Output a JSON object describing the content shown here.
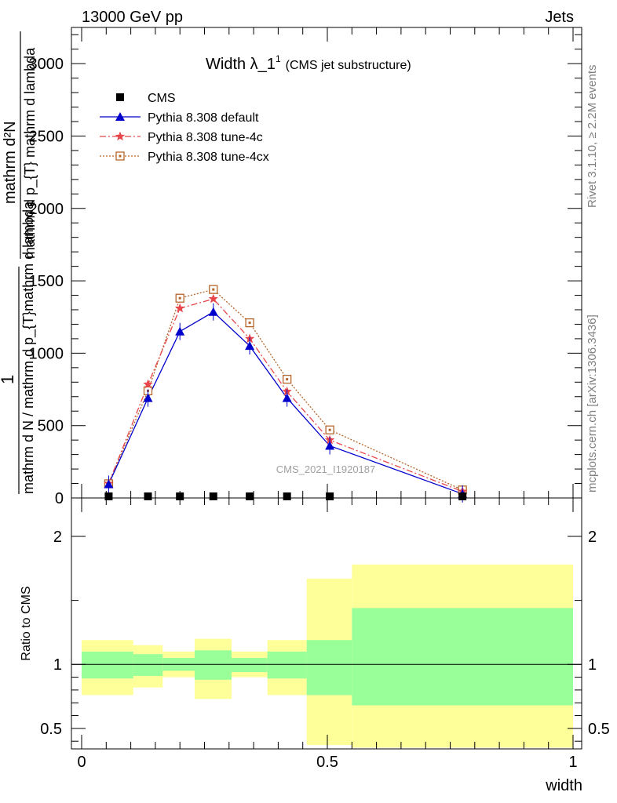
{
  "header": {
    "left": "13000 GeV pp",
    "right": "Jets"
  },
  "title": {
    "main": "Width λ_1",
    "sup": "1",
    "sub": "(CMS jet substructure)"
  },
  "side_labels": {
    "rivet": "Rivet 3.1.10, ≥ 2.2M events",
    "mcplots": "mcplots.cern.ch [arXiv:1306.3436]"
  },
  "watermark": "CMS_2021_I1920187",
  "colors": {
    "cms": "#000000",
    "default": "#0000cc",
    "tune4c": "#e8474b",
    "tune4cx": "#b5652a",
    "band_inner": "#99ff99",
    "band_outer": "#ffff99"
  },
  "chart_data": [
    {
      "type": "line",
      "title": "Width λ_1¹ (CMS jet substructure)",
      "xlim": [
        0,
        1
      ],
      "ylim": [
        0,
        3250
      ],
      "ylabel_parts": {
        "one": "1",
        "denominator": "mathrm d N / mathrm d p_{T}mathrm d lambda",
        "numerator": "mathrm d²N",
        "frac_denominator": "mathrm d p_{T} mathrm d lambda"
      },
      "y_ticks": [
        0,
        500,
        1000,
        1500,
        2000,
        2500,
        3000
      ],
      "y_ticklabels": [
        "0",
        "500",
        "1000",
        "1500",
        "2000",
        "2500",
        "3000"
      ],
      "legend": {
        "position": "top-left",
        "entries": [
          "CMS",
          "Pythia 8.308 default",
          "Pythia 8.308 tune-4c",
          "Pythia 8.308 tune-4cx"
        ]
      },
      "x": [
        0.055,
        0.135,
        0.2,
        0.268,
        0.342,
        0.418,
        0.505,
        0.775
      ],
      "series": [
        {
          "name": "CMS",
          "marker": "square",
          "values": [
            0,
            0,
            0,
            0,
            0,
            0,
            0,
            0
          ]
        },
        {
          "name": "Pythia 8.308 default",
          "marker": "triangle",
          "values": [
            95,
            690,
            1150,
            1285,
            1050,
            690,
            360,
            28
          ]
        },
        {
          "name": "Pythia 8.308 tune-4c",
          "marker": "star",
          "values": [
            100,
            785,
            1310,
            1375,
            1100,
            735,
            400,
            45
          ]
        },
        {
          "name": "Pythia 8.308 tune-4cx",
          "marker": "open-square",
          "values": [
            98,
            740,
            1380,
            1440,
            1210,
            820,
            470,
            55
          ]
        }
      ]
    },
    {
      "type": "area",
      "title": "",
      "xlabel": "width",
      "ylabel": "Ratio to CMS",
      "xlim": [
        0,
        1
      ],
      "ylim": [
        0.34,
        2.3
      ],
      "x_ticks": [
        0,
        0.5,
        1
      ],
      "x_ticklabels": [
        "0",
        "0.5",
        "1"
      ],
      "y_ticks": [
        0.5,
        1,
        2
      ],
      "y_ticklabels": [
        "0.5",
        "1",
        "2"
      ],
      "reference_line": 1,
      "bins": [
        {
          "x0": 0.0,
          "x1": 0.105,
          "inner": [
            0.89,
            1.1
          ],
          "outer": [
            0.76,
            1.19
          ]
        },
        {
          "x0": 0.105,
          "x1": 0.165,
          "inner": [
            0.91,
            1.08
          ],
          "outer": [
            0.82,
            1.15
          ]
        },
        {
          "x0": 0.165,
          "x1": 0.23,
          "inner": [
            0.95,
            1.05
          ],
          "outer": [
            0.9,
            1.1
          ]
        },
        {
          "x0": 0.23,
          "x1": 0.305,
          "inner": [
            0.88,
            1.11
          ],
          "outer": [
            0.73,
            1.2
          ]
        },
        {
          "x0": 0.305,
          "x1": 0.378,
          "inner": [
            0.94,
            1.05
          ],
          "outer": [
            0.9,
            1.1
          ]
        },
        {
          "x0": 0.378,
          "x1": 0.458,
          "inner": [
            0.89,
            1.1
          ],
          "outer": [
            0.76,
            1.19
          ]
        },
        {
          "x0": 0.458,
          "x1": 0.55,
          "inner": [
            0.76,
            1.19
          ],
          "outer": [
            0.37,
            1.67
          ]
        },
        {
          "x0": 0.55,
          "x1": 1.0,
          "inner": [
            0.68,
            1.44
          ],
          "outer": [
            0.35,
            1.78
          ]
        }
      ]
    }
  ]
}
